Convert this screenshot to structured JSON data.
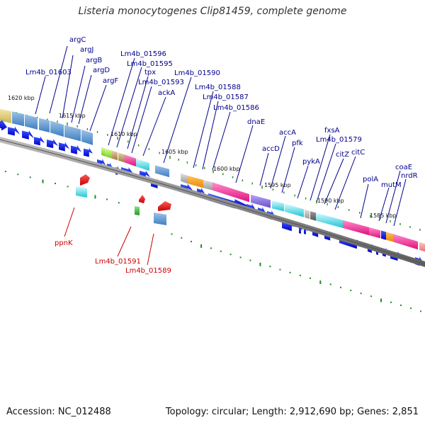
{
  "title": "Listeria monocytogenes Clip81459, complete genome",
  "footer": {
    "accession": "Accession: NC_012488",
    "summary": "Topology: circular; Length: 2,912,690 bp; Genes: 2,851"
  },
  "colors": {
    "forward_label": "#00008b",
    "reverse_label": "#cc0000",
    "forward_arrow": "#0000ee",
    "reverse_arrow": "#ee0000",
    "backbone": "#777777",
    "tick": "#228b22"
  },
  "kbp_labels": [
    "1620 kbp",
    "1615 kbp",
    "1610 kbp",
    "1605 kbp",
    "1600 kbp",
    "1595 kbp",
    "1590 kbp",
    "1585 kbp"
  ],
  "forward_gene_labels": [
    "argC",
    "argJ",
    "argB",
    "argD",
    "argF",
    "Lm4b_01603",
    "Lm4b_01596",
    "Lm4b_01595",
    "tpx",
    "Lm4b_01593",
    "ackA",
    "Lm4b_01590",
    "Lm4b_01588",
    "Lm4b_01587",
    "Lm4b_01586",
    "dnaE",
    "accA",
    "accD",
    "pfk",
    "fxsA",
    "Lm4b_01579",
    "pykA",
    "citZ",
    "citC",
    "polA",
    "mutM",
    "coaE",
    "nrdR"
  ],
  "reverse_gene_labels": [
    "ppnK",
    "Lm4b_01591",
    "Lm4b_01589"
  ]
}
